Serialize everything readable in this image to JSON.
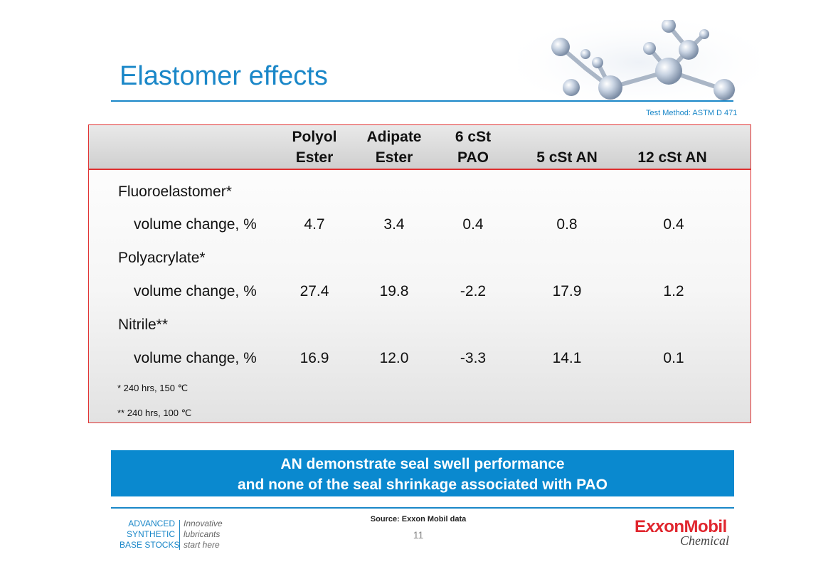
{
  "slide": {
    "title": "Elastomer effects",
    "test_method": "Test Method: ASTM D 471"
  },
  "table": {
    "columns": [
      {
        "line1": "Polyol",
        "line2": "Ester"
      },
      {
        "line1": "Adipate",
        "line2": "Ester"
      },
      {
        "line1": "6 cSt",
        "line2": "PAO"
      },
      {
        "line1": "",
        "line2": "5 cSt AN"
      },
      {
        "line1": "",
        "line2": "12 cSt AN"
      }
    ],
    "groups": [
      {
        "name": "Fluoroelastomer*",
        "metric": "volume change, %",
        "values": [
          "4.7",
          "3.4",
          "0.4",
          "0.8",
          "0.4"
        ]
      },
      {
        "name": "Polyacrylate*",
        "metric": "volume change, %",
        "values": [
          "27.4",
          "19.8",
          "-2.2",
          "17.9",
          "1.2"
        ]
      },
      {
        "name": "Nitrile**",
        "metric": "volume change, %",
        "values": [
          "16.9",
          "12.0",
          "-3.3",
          "14.1",
          "0.1"
        ]
      }
    ],
    "footnotes": [
      "* 240 hrs, 150 ℃",
      "** 240 hrs, 100 ℃"
    ]
  },
  "banner": {
    "line1": "AN demonstrate seal swell performance",
    "line2": "and none of the seal shrinkage associated with PAO"
  },
  "footer": {
    "source": "Source: Exxon Mobil data",
    "page_number": "11",
    "brand_left": [
      "ADVANCED",
      "SYNTHETIC",
      "BASE STOCKS"
    ],
    "brand_right": [
      "Innovative",
      "lubricants",
      "start here"
    ],
    "logo": {
      "part1": "E",
      "part2": "xx",
      "part3": "onMobil",
      "sub": "Chemical"
    }
  },
  "colors": {
    "accent": "#1a87c8",
    "banner": "#0a89cf",
    "border": "#e03030",
    "logo_red": "#e0262e"
  },
  "icons": {
    "decoration": "molecule-icon"
  }
}
